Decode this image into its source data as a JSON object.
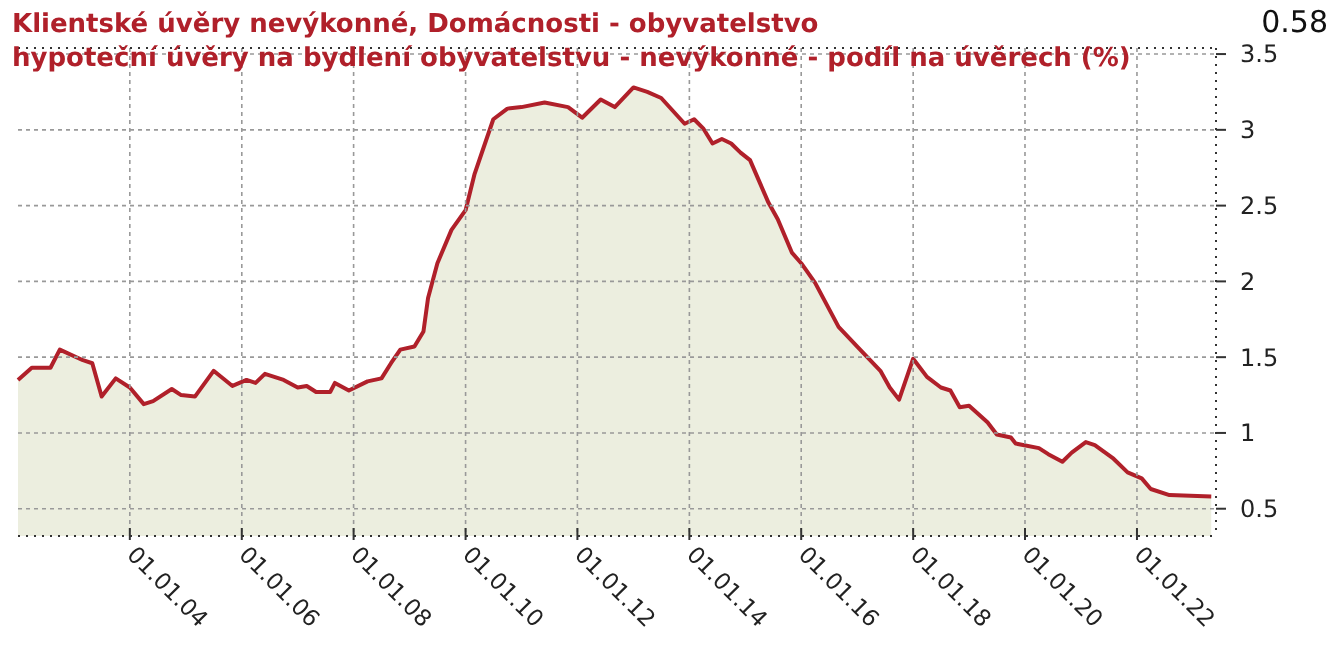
{
  "chart_data": {
    "type": "area",
    "title": "Klientské úvěry nevýkonné, Domácnosti - obyvatelstvo",
    "subtitle": "hypoteční úvěry na bydlení obyvatelstvu - nevýkonné - podíl na úvěrech (%)",
    "annotations": [
      "0.58"
    ],
    "x": [
      "2002-01",
      "2002-04",
      "2002-08",
      "2002-10",
      "2003-03",
      "2003-05",
      "2003-07",
      "2003-10",
      "2004-01",
      "2004-04",
      "2004-06",
      "2004-10",
      "2004-12",
      "2005-03",
      "2005-07",
      "2005-11",
      "2006-02",
      "2006-04",
      "2006-06",
      "2006-10",
      "2007-01",
      "2007-03",
      "2007-05",
      "2007-08",
      "2007-09",
      "2007-12",
      "2008-04",
      "2008-07",
      "2008-09",
      "2008-11",
      "2009-02",
      "2009-04",
      "2009-05",
      "2009-07",
      "2009-10",
      "2010-01",
      "2010-03",
      "2010-05",
      "2010-07",
      "2010-10",
      "2011-01",
      "2011-06",
      "2011-11",
      "2012-02",
      "2012-06",
      "2012-09",
      "2013-01",
      "2013-04",
      "2013-07",
      "2013-12",
      "2014-02",
      "2014-04",
      "2014-06",
      "2014-08",
      "2014-10",
      "2014-12",
      "2015-02",
      "2015-06",
      "2015-08",
      "2015-11",
      "2016-01",
      "2016-04",
      "2016-09",
      "2017-01",
      "2017-06",
      "2017-08",
      "2017-10",
      "2018-01",
      "2018-04",
      "2018-07",
      "2018-09",
      "2018-11",
      "2019-01",
      "2019-05",
      "2019-07",
      "2019-10",
      "2019-11",
      "2020-04",
      "2020-06",
      "2020-09",
      "2020-11",
      "2021-02",
      "2021-04",
      "2021-08",
      "2021-11",
      "2022-02",
      "2022-04",
      "2022-08",
      "2023-05"
    ],
    "series": [
      {
        "color": "#b0202a",
        "values": [
          1.35,
          1.43,
          1.43,
          1.55,
          1.48,
          1.46,
          1.24,
          1.36,
          1.3,
          1.19,
          1.21,
          1.29,
          1.25,
          1.24,
          1.41,
          1.31,
          1.35,
          1.33,
          1.39,
          1.35,
          1.3,
          1.31,
          1.27,
          1.27,
          1.33,
          1.28,
          1.34,
          1.36,
          1.46,
          1.55,
          1.57,
          1.67,
          1.89,
          2.12,
          2.34,
          2.47,
          2.71,
          2.89,
          3.07,
          3.14,
          3.15,
          3.18,
          3.15,
          3.08,
          3.2,
          3.15,
          3.28,
          3.25,
          3.21,
          3.04,
          3.07,
          3.01,
          2.91,
          2.94,
          2.91,
          2.85,
          2.8,
          2.52,
          2.41,
          2.19,
          2.12,
          1.99,
          1.7,
          1.57,
          1.41,
          1.3,
          1.22,
          1.49,
          1.37,
          1.3,
          1.28,
          1.17,
          1.18,
          1.07,
          0.99,
          0.97,
          0.93,
          0.9,
          0.86,
          0.81,
          0.87,
          0.94,
          0.92,
          0.83,
          0.74,
          0.7,
          0.63,
          0.59,
          0.58
        ]
      }
    ],
    "xlim": [
      "2002-01",
      "2023-06"
    ],
    "xticks": [
      {
        "value": "2004-01-01",
        "label": "01.01.04"
      },
      {
        "value": "2006-01-01",
        "label": "01.01.06"
      },
      {
        "value": "2008-01-01",
        "label": "01.01.08"
      },
      {
        "value": "2010-01-01",
        "label": "01.01.10"
      },
      {
        "value": "2012-01-01",
        "label": "01.01.12"
      },
      {
        "value": "2014-01-01",
        "label": "01.01.14"
      },
      {
        "value": "2016-01-01",
        "label": "01.01.16"
      },
      {
        "value": "2018-01-01",
        "label": "01.01.18"
      },
      {
        "value": "2020-01-01",
        "label": "01.01.20"
      },
      {
        "value": "2022-01-01",
        "label": "01.01.22"
      }
    ],
    "ylim": [
      0.32,
      3.54
    ],
    "yticks": [
      0.5,
      1,
      1.5,
      2,
      2.5,
      3,
      3.5
    ],
    "grid": true,
    "marker": "none",
    "line_style": "solid"
  }
}
